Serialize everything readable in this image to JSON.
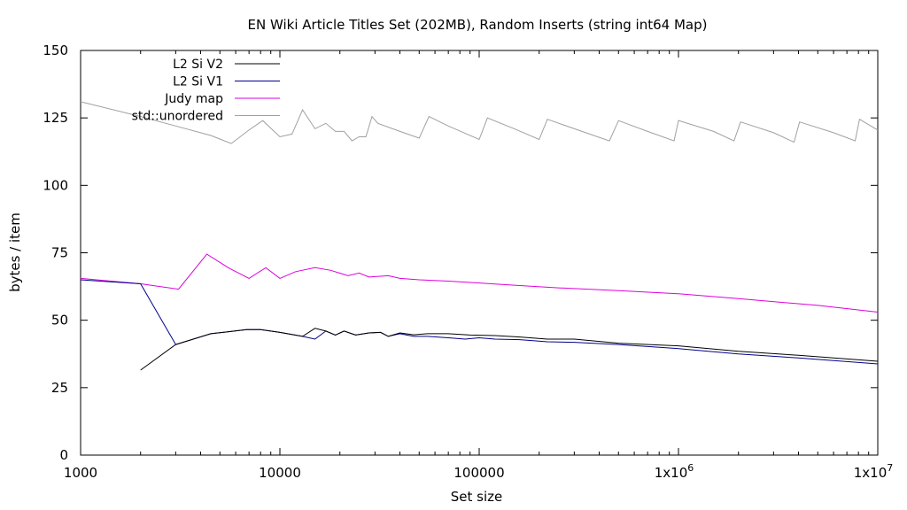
{
  "chart_data": {
    "type": "line",
    "title": "EN Wiki Article Titles Set (202MB), Random Inserts (string int64 Map)",
    "xlabel": "Set size",
    "ylabel": "bytes / item",
    "xscale": "log",
    "xlim": [
      1000,
      10000000
    ],
    "ylim": [
      0,
      150
    ],
    "grid": false,
    "legend_position": "top-left",
    "x_ticks": [
      {
        "value": 1000,
        "base": "1000",
        "exp": ""
      },
      {
        "value": 10000,
        "base": "10000",
        "exp": ""
      },
      {
        "value": 100000,
        "base": "100000",
        "exp": ""
      },
      {
        "value": 1000000,
        "base": "1x10",
        "exp": "6"
      },
      {
        "value": 10000000,
        "base": "1x10",
        "exp": "7"
      }
    ],
    "y_ticks": [
      0,
      25,
      50,
      75,
      100,
      125,
      150
    ],
    "series": [
      {
        "name": "L2 Si V2",
        "color": "#000000",
        "points": [
          [
            2000,
            31.5
          ],
          [
            3000,
            41
          ],
          [
            4500,
            45
          ],
          [
            6800,
            46.5
          ],
          [
            8000,
            46.5
          ],
          [
            10000,
            45.5
          ],
          [
            13000,
            44
          ],
          [
            15000,
            47
          ],
          [
            17000,
            46
          ],
          [
            19000,
            44.5
          ],
          [
            21000,
            46
          ],
          [
            24000,
            44.5
          ],
          [
            28000,
            45.3
          ],
          [
            32000,
            45.5
          ],
          [
            35000,
            44
          ],
          [
            40000,
            45.3
          ],
          [
            47000,
            44.6
          ],
          [
            55000,
            45
          ],
          [
            70000,
            45
          ],
          [
            90000,
            44.5
          ],
          [
            120000,
            44.3
          ],
          [
            160000,
            43.8
          ],
          [
            220000,
            43
          ],
          [
            300000,
            43
          ],
          [
            500000,
            41.5
          ],
          [
            1000000,
            40.5
          ],
          [
            2000000,
            38.5
          ],
          [
            4000000,
            37
          ],
          [
            10000000,
            34.8
          ]
        ]
      },
      {
        "name": "L2 Si V1",
        "color": "#00008b",
        "points": [
          [
            1000,
            65
          ],
          [
            2000,
            63.5
          ],
          [
            3000,
            41
          ],
          [
            4500,
            45
          ],
          [
            6800,
            46.5
          ],
          [
            8000,
            46.5
          ],
          [
            10000,
            45.5
          ],
          [
            13000,
            44
          ],
          [
            15000,
            43
          ],
          [
            17000,
            46
          ],
          [
            19000,
            44.5
          ],
          [
            21000,
            46
          ],
          [
            24000,
            44.5
          ],
          [
            28000,
            45.3
          ],
          [
            32000,
            45.5
          ],
          [
            35000,
            44
          ],
          [
            40000,
            45
          ],
          [
            47000,
            44
          ],
          [
            55000,
            44
          ],
          [
            70000,
            43.5
          ],
          [
            85000,
            43
          ],
          [
            100000,
            43.5
          ],
          [
            120000,
            43
          ],
          [
            160000,
            42.8
          ],
          [
            220000,
            42
          ],
          [
            300000,
            41.8
          ],
          [
            500000,
            41
          ],
          [
            1000000,
            39.5
          ],
          [
            2000000,
            37.5
          ],
          [
            4000000,
            36
          ],
          [
            10000000,
            33.8
          ]
        ]
      },
      {
        "name": "Judy map",
        "color": "#dd00dd",
        "points": [
          [
            1000,
            65.5
          ],
          [
            2000,
            63.5
          ],
          [
            3100,
            61.5
          ],
          [
            4300,
            74.5
          ],
          [
            5500,
            69.5
          ],
          [
            7000,
            65.5
          ],
          [
            8500,
            69.5
          ],
          [
            10000,
            65.5
          ],
          [
            12000,
            68
          ],
          [
            15000,
            69.5
          ],
          [
            18000,
            68.5
          ],
          [
            22000,
            66.5
          ],
          [
            25000,
            67.5
          ],
          [
            28000,
            66
          ],
          [
            35000,
            66.5
          ],
          [
            40000,
            65.5
          ],
          [
            50000,
            65
          ],
          [
            70000,
            64.5
          ],
          [
            100000,
            63.8
          ],
          [
            150000,
            63
          ],
          [
            250000,
            62
          ],
          [
            500000,
            61
          ],
          [
            1000000,
            59.8
          ],
          [
            2000000,
            58
          ],
          [
            5000000,
            55.5
          ],
          [
            10000000,
            53
          ]
        ]
      },
      {
        "name": "std::unordered",
        "color": "#a0a0a0",
        "points": [
          [
            1000,
            131
          ],
          [
            2000,
            125.5
          ],
          [
            3000,
            122
          ],
          [
            4500,
            118.5
          ],
          [
            5700,
            115.5
          ],
          [
            7000,
            120.5
          ],
          [
            8200,
            124
          ],
          [
            10000,
            118
          ],
          [
            11500,
            119
          ],
          [
            13000,
            128
          ],
          [
            15000,
            121
          ],
          [
            17000,
            123
          ],
          [
            19000,
            120
          ],
          [
            21000,
            120
          ],
          [
            23000,
            116.5
          ],
          [
            25000,
            118
          ],
          [
            27000,
            118
          ],
          [
            29000,
            125.5
          ],
          [
            31000,
            123
          ],
          [
            40000,
            120
          ],
          [
            50000,
            117.5
          ],
          [
            56000,
            125.5
          ],
          [
            70000,
            122
          ],
          [
            100000,
            117
          ],
          [
            110000,
            125
          ],
          [
            150000,
            121
          ],
          [
            200000,
            117
          ],
          [
            220000,
            124.5
          ],
          [
            300000,
            121
          ],
          [
            450000,
            116.5
          ],
          [
            500000,
            124
          ],
          [
            700000,
            120
          ],
          [
            950000,
            116.5
          ],
          [
            1000000,
            124
          ],
          [
            1500000,
            120
          ],
          [
            1900000,
            116.5
          ],
          [
            2050000,
            123.5
          ],
          [
            3000000,
            119.5
          ],
          [
            3800000,
            116
          ],
          [
            4050000,
            123.5
          ],
          [
            6000000,
            119.5
          ],
          [
            7700000,
            116.5
          ],
          [
            8100000,
            124.5
          ],
          [
            10000000,
            120.5
          ]
        ]
      }
    ]
  }
}
